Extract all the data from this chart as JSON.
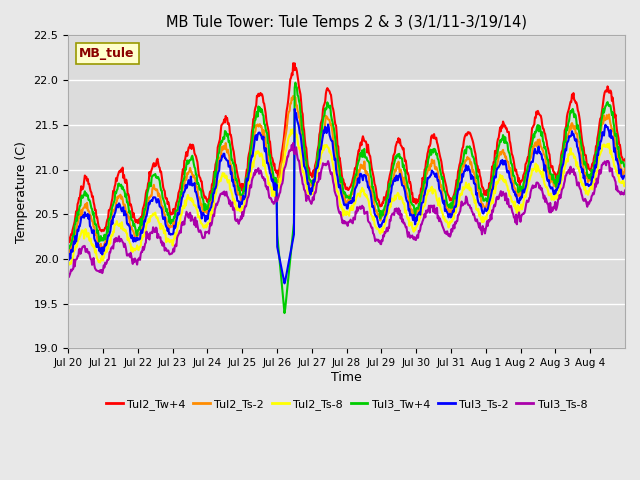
{
  "title": "MB Tule Tower: Tule Temps 2 & 3 (3/1/11-3/19/14)",
  "xlabel": "Time",
  "ylabel": "Temperature (C)",
  "ylim": [
    19.0,
    22.5
  ],
  "background_color": "#e8e8e8",
  "plot_bg_color": "#dcdcdc",
  "grid_color": "#ffffff",
  "annotation_text": "MB_tule",
  "annotation_bg": "#ffffcc",
  "annotation_fg": "#8b0000",
  "xtick_labels": [
    "Jul 20",
    "Jul 21",
    "Jul 22",
    "Jul 23",
    "Jul 24",
    "Jul 25",
    "Jul 26",
    "Jul 27",
    "Jul 28",
    "Jul 29",
    "Jul 30",
    "Jul 31",
    "Aug 1",
    "Aug 2",
    "Aug 3",
    "Aug 4"
  ],
  "series_names": [
    "Tul2_Tw+4",
    "Tul2_Ts-2",
    "Tul2_Ts-8",
    "Tul3_Tw+4",
    "Tul3_Ts-2",
    "Tul3_Ts-8"
  ],
  "series_colors": [
    "#ff0000",
    "#ff8c00",
    "#ffff00",
    "#00cc00",
    "#0000ff",
    "#aa00aa"
  ],
  "series_lw": [
    1.5,
    1.5,
    1.5,
    1.5,
    1.5,
    1.5
  ],
  "legend_ncol": 6,
  "n_days": 16,
  "pts_per_day": 48
}
